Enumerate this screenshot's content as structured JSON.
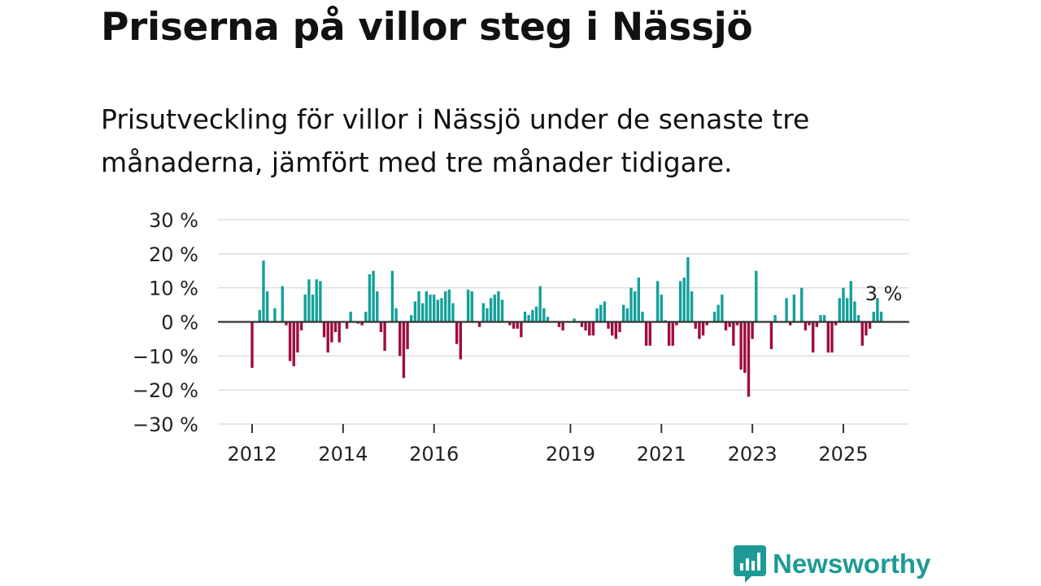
{
  "header": {
    "title": "Priserna på villor steg i Nässjö",
    "subtitle": "Prisutveckling för villor i Nässjö under de senaste tre månaderna, jämfört med tre månader tidigare."
  },
  "brand": {
    "name": "Newsworthy",
    "icon": "newsworthy-logo-icon",
    "color": "#1e9a96"
  },
  "colors": {
    "positive": "#14a09a",
    "negative": "#9e0e3d",
    "grid": "#dddddd",
    "zero_line": "#333333"
  },
  "chart_data": {
    "type": "bar",
    "title": "Priserna på villor steg i Nässjö",
    "xlabel": "",
    "ylabel": "",
    "ylim": [
      -30,
      30
    ],
    "yticks": [
      30,
      20,
      10,
      0,
      -10,
      -20,
      -30
    ],
    "ytick_labels": [
      "30 %",
      "20 %",
      "10 %",
      "0 %",
      "−10 %",
      "−20 %",
      "−30 %"
    ],
    "xticks": [
      {
        "label": "2012",
        "index": 0
      },
      {
        "label": "2014",
        "index": 24
      },
      {
        "label": "2016",
        "index": 48
      },
      {
        "label": "2019",
        "index": 84
      },
      {
        "label": "2021",
        "index": 108
      },
      {
        "label": "2023",
        "index": 132
      },
      {
        "label": "2025",
        "index": 156
      }
    ],
    "annotation": {
      "text": "3 %",
      "index": 166
    },
    "frequency": "monthly, starting January 2012",
    "values": [
      -13.5,
      0,
      3.5,
      18,
      9,
      0,
      4,
      0,
      10.5,
      -1,
      -11.5,
      -13,
      -9,
      -2.5,
      8,
      12.5,
      8,
      12.5,
      12,
      -4.5,
      -9,
      -6,
      -3,
      -6,
      0,
      -2,
      3,
      0,
      -0.5,
      -1,
      3,
      14,
      15,
      9,
      -3,
      -8.5,
      0,
      15,
      4,
      -10,
      -16.5,
      -8,
      2,
      6,
      9,
      5.5,
      9,
      8,
      8,
      6.5,
      7,
      9,
      9.5,
      5.5,
      -6.5,
      -11,
      0,
      9.5,
      9,
      0,
      -1.5,
      5.5,
      4,
      7,
      8,
      9,
      6.5,
      0,
      -1,
      -2,
      -2,
      -4.5,
      3,
      2,
      3.5,
      4.5,
      10.5,
      4,
      1.5,
      0,
      0,
      -1.5,
      -2.5,
      0,
      0,
      1,
      0,
      -1.5,
      -2.5,
      -4,
      -4,
      4,
      5,
      6,
      -2,
      -4,
      -5,
      -3,
      5,
      4,
      10,
      9,
      13,
      3,
      -7,
      -7,
      0,
      12,
      8,
      0.5,
      -7,
      -7,
      -1,
      12,
      13,
      19,
      9,
      -2,
      -5,
      -4,
      -1,
      0,
      3,
      5,
      8,
      -2.5,
      -1.5,
      -7,
      -1,
      -14,
      -15,
      -22,
      -5,
      15,
      0,
      0,
      0,
      -8,
      2,
      0,
      0,
      7,
      -1,
      8,
      0,
      10,
      -2.5,
      -1,
      -9,
      -1.5,
      2,
      2,
      -9,
      -9,
      -1,
      7,
      10,
      7,
      12,
      6,
      2,
      -7,
      -4,
      -2,
      3,
      7,
      3
    ]
  }
}
